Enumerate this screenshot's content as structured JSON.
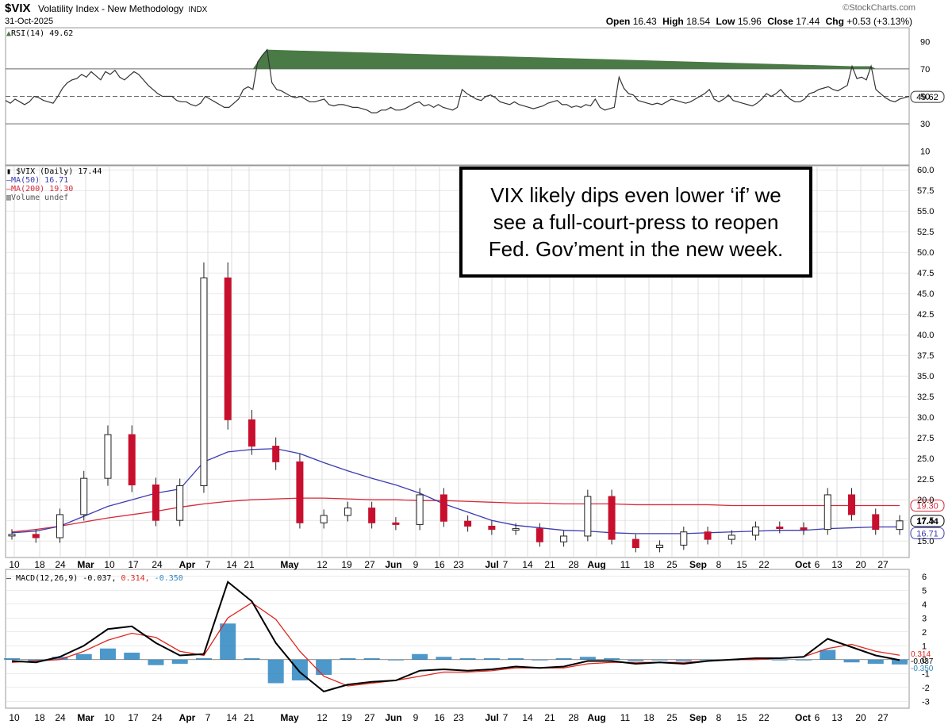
{
  "header": {
    "symbol": "$VIX",
    "name": "Volatility Index - New Methodology",
    "exchange": "INDX",
    "date": "31-Oct-2025",
    "brand": "©StockCharts.com",
    "ohlc": {
      "open_label": "Open",
      "open": "16.43",
      "high_label": "High",
      "high": "18.54",
      "low_label": "Low",
      "low": "15.96",
      "close_label": "Close",
      "close": "17.44",
      "chg_label": "Chg",
      "chg": "+0.53 (+3.13%)"
    }
  },
  "rsi_panel": {
    "legend": "RSI(14) 49.62",
    "ticks": [
      "90",
      "70",
      "50",
      "30",
      "10"
    ],
    "last_label": "49.62"
  },
  "price_panel": {
    "legend_main": "$VIX (Daily) 17.44",
    "legend_ma50": "MA(50) 16.71",
    "legend_ma200": "MA(200) 19.30",
    "legend_volume": "Volume undef",
    "ticks": [
      "60.0",
      "57.5",
      "55.0",
      "52.5",
      "50.0",
      "47.5",
      "45.0",
      "42.5",
      "40.0",
      "37.5",
      "35.0",
      "32.5",
      "30.0",
      "27.5",
      "25.0",
      "22.5",
      "20.0",
      "17.5",
      "15.0"
    ],
    "last_close_label": "17.44",
    "ma50_label": "16.71",
    "ma200_label": "19.30"
  },
  "annotation": {
    "line1": "VIX likely dips even lower ‘if’ we",
    "line2": "see a full-court-press to reopen",
    "line3": "Fed. Gov’ment in the new week."
  },
  "macd_panel": {
    "legend_prefix": "MACD(12,26,9) -0.037,",
    "legend_signal": "0.314,",
    "legend_hist": "-0.350",
    "ticks": [
      "6",
      "5",
      "4",
      "3",
      "2",
      "1",
      "0",
      "-1",
      "-2",
      "-3"
    ],
    "last_labels": [
      "0.314",
      "-0.037",
      "-0.350"
    ]
  },
  "x_axis_labels": [
    "10",
    "18",
    "24",
    "Mar",
    "10",
    "17",
    "24",
    "Apr",
    "7",
    "14",
    "21",
    "May",
    "12",
    "19",
    "27",
    "Jun",
    "9",
    "16",
    "23",
    "Jul",
    "7",
    "14",
    "21",
    "28",
    "Aug",
    "11",
    "18",
    "25",
    "Sep",
    "8",
    "15",
    "22",
    "Oct",
    "6",
    "13",
    "20",
    "27"
  ],
  "colors": {
    "up_candle": "#ffffff",
    "down_candle": "#c8102e",
    "black_candle": "#000000",
    "ma50": "#3b3bb3",
    "ma200": "#d62a3a",
    "macd_line": "#000000",
    "signal_line": "#e0261e",
    "histogram": "#2e86c1",
    "rsi_fill": "#4a7a45",
    "grid": "#d8d8d8"
  },
  "chart_data": [
    {
      "type": "line",
      "title": "RSI(14)",
      "ylim": [
        0,
        100
      ],
      "reference_lines": [
        70,
        50,
        30
      ],
      "last": 49.62,
      "series": [
        {
          "name": "RSI(14)",
          "values": [
            47,
            45,
            48,
            46,
            44,
            46,
            50,
            49,
            47,
            46,
            45,
            50,
            56,
            60,
            62,
            63,
            66,
            64,
            68,
            65,
            62,
            68,
            66,
            69,
            64,
            62,
            65,
            68,
            66,
            62,
            58,
            55,
            52,
            50,
            50,
            50,
            47,
            46,
            46,
            44,
            43,
            45,
            50,
            48,
            46,
            44,
            42,
            42,
            45,
            48,
            55,
            57,
            55,
            75,
            80,
            84,
            60,
            55,
            54,
            52,
            50,
            49,
            50,
            48,
            46,
            46,
            47,
            48,
            44,
            43,
            44,
            44,
            43,
            42,
            42,
            41,
            40,
            38,
            38,
            40,
            40,
            42,
            40,
            40,
            41,
            43,
            45,
            46,
            43,
            44,
            42,
            44,
            42,
            41,
            40,
            42,
            55,
            52,
            50,
            48,
            47,
            50,
            51,
            49,
            46,
            45,
            44,
            46,
            44,
            43,
            42,
            41,
            42,
            43,
            45,
            46,
            47,
            44,
            44,
            42,
            43,
            42,
            44,
            43,
            48,
            42,
            40,
            41,
            42,
            64,
            56,
            52,
            51,
            47,
            46,
            45,
            44,
            45,
            44,
            46,
            48,
            47,
            46,
            45,
            46,
            48,
            50,
            52,
            55,
            48,
            46,
            48,
            51,
            47,
            46,
            45,
            44,
            43,
            45,
            48,
            52,
            50,
            52,
            55,
            51,
            48,
            46,
            46,
            48,
            52,
            53,
            55,
            56,
            57,
            55,
            54,
            56,
            58,
            72,
            63,
            64,
            62,
            72,
            55,
            52,
            49,
            47,
            46,
            48,
            49,
            50
          ]
        }
      ]
    },
    {
      "type": "line",
      "title": "$VIX (Daily)",
      "ylim": [
        13.0,
        60.5
      ],
      "x": [
        "Feb 10",
        "Feb 18",
        "Feb 24",
        "Mar 3",
        "Mar 10",
        "Mar 17",
        "Mar 24",
        "Apr 1",
        "Apr 7",
        "Apr 14",
        "Apr 21",
        "May 1",
        "May 12",
        "May 19",
        "May 27",
        "Jun 2",
        "Jun 9",
        "Jun 16",
        "Jun 23",
        "Jul 1",
        "Jul 7",
        "Jul 14",
        "Jul 21",
        "Jul 28",
        "Aug 1",
        "Aug 11",
        "Aug 18",
        "Aug 25",
        "Sep 2",
        "Sep 8",
        "Sep 15",
        "Sep 22",
        "Oct 1",
        "Oct 6",
        "Oct 13",
        "Oct 20",
        "Oct 27",
        "Oct 31"
      ],
      "series": [
        {
          "name": "$VIX",
          "values": [
            15.8,
            15.4,
            18.2,
            22.6,
            27.9,
            21.8,
            17.5,
            21.7,
            46.9,
            29.7,
            26.5,
            24.6,
            17.2,
            18.1,
            19.0,
            17.2,
            17.0,
            20.6,
            17.4,
            16.8,
            16.4,
            16.5,
            14.9,
            15.6,
            20.4,
            15.2,
            14.2,
            14.5,
            16.1,
            15.2,
            15.7,
            16.7,
            16.6,
            16.4,
            20.6,
            18.2,
            16.4,
            17.44
          ]
        },
        {
          "name": "MA(50)",
          "values": [
            16.0,
            16.2,
            16.8,
            18.0,
            19.2,
            20.0,
            20.8,
            21.3,
            24.6,
            25.8,
            26.1,
            26.2,
            25.6,
            24.5,
            23.5,
            22.6,
            21.8,
            20.8,
            19.5,
            18.5,
            17.5,
            16.9,
            16.6,
            16.3,
            16.2,
            16.0,
            15.9,
            15.9,
            15.9,
            16.0,
            16.1,
            16.2,
            16.3,
            16.3,
            16.5,
            16.6,
            16.7,
            16.71
          ]
        },
        {
          "name": "MA(200)",
          "values": [
            16.1,
            16.4,
            16.8,
            17.3,
            17.8,
            18.2,
            18.6,
            19.1,
            19.5,
            19.8,
            20.0,
            20.1,
            20.2,
            20.2,
            20.1,
            20.0,
            20.0,
            19.9,
            19.9,
            19.8,
            19.7,
            19.6,
            19.6,
            19.5,
            19.5,
            19.5,
            19.4,
            19.4,
            19.4,
            19.4,
            19.3,
            19.3,
            19.3,
            19.3,
            19.3,
            19.3,
            19.3,
            19.3
          ]
        }
      ]
    },
    {
      "type": "line",
      "title": "MACD(12,26,9)",
      "ylim": [
        -3.5,
        6.5
      ],
      "series": [
        {
          "name": "MACD",
          "values": [
            -0.1,
            -0.2,
            0.2,
            1.0,
            2.2,
            2.4,
            1.2,
            0.3,
            0.4,
            5.6,
            4.2,
            1.2,
            -0.9,
            -2.3,
            -1.8,
            -1.6,
            -1.5,
            -0.8,
            -0.7,
            -0.8,
            -0.7,
            -0.5,
            -0.6,
            -0.5,
            -0.1,
            -0.1,
            -0.3,
            -0.2,
            -0.3,
            -0.1,
            0.0,
            0.1,
            0.1,
            0.2,
            1.5,
            0.9,
            0.3,
            -0.037
          ]
        },
        {
          "name": "Signal",
          "values": [
            -0.2,
            -0.1,
            0.0,
            0.6,
            1.4,
            1.9,
            1.6,
            0.6,
            0.3,
            3.0,
            4.1,
            2.9,
            0.6,
            -1.2,
            -1.9,
            -1.7,
            -1.5,
            -1.2,
            -0.9,
            -0.9,
            -0.8,
            -0.6,
            -0.6,
            -0.6,
            -0.3,
            -0.2,
            -0.2,
            -0.2,
            -0.2,
            -0.1,
            0.0,
            0.0,
            0.1,
            0.2,
            0.8,
            1.1,
            0.6,
            0.314
          ]
        },
        {
          "name": "Histogram",
          "values": [
            0.1,
            -0.1,
            0.2,
            0.4,
            0.8,
            0.5,
            -0.4,
            -0.3,
            0.1,
            2.6,
            0.1,
            -1.7,
            -1.5,
            -1.1,
            0.1,
            0.1,
            0.0,
            0.4,
            0.2,
            0.1,
            0.1,
            0.1,
            0.0,
            0.1,
            0.2,
            0.1,
            -0.1,
            0.0,
            -0.1,
            0.0,
            0.0,
            0.1,
            0.0,
            0.0,
            0.7,
            -0.2,
            -0.3,
            -0.35
          ]
        }
      ]
    }
  ]
}
